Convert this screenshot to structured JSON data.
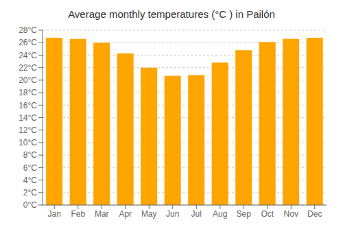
{
  "chart_data": {
    "type": "bar",
    "title": "Average monthly temperatures (°C ) in Pailón",
    "categories": [
      "Jan",
      "Feb",
      "Mar",
      "Apr",
      "May",
      "Jun",
      "Jul",
      "Aug",
      "Sep",
      "Oct",
      "Nov",
      "Dec"
    ],
    "values": [
      26.8,
      26.6,
      26.0,
      24.3,
      22.0,
      20.7,
      20.8,
      22.8,
      24.8,
      26.1,
      26.6,
      26.8
    ],
    "color": "#FFA500",
    "ylim": [
      0,
      28
    ],
    "yticks": [
      {
        "value": 0,
        "label": "0°C"
      },
      {
        "value": 2,
        "label": "2°C"
      },
      {
        "value": 4,
        "label": "4°C"
      },
      {
        "value": 6,
        "label": "6°C"
      },
      {
        "value": 8,
        "label": "8°C"
      },
      {
        "value": 10,
        "label": "10°C"
      },
      {
        "value": 12,
        "label": "12°C"
      },
      {
        "value": 14,
        "label": "14°C"
      },
      {
        "value": 16,
        "label": "16°C"
      },
      {
        "value": 18,
        "label": "18°C"
      },
      {
        "value": 20,
        "label": "20°C"
      },
      {
        "value": 22,
        "label": "22°C"
      },
      {
        "value": 24,
        "label": "24°C"
      },
      {
        "value": 26,
        "label": "26°C"
      },
      {
        "value": 28,
        "label": "28°C"
      }
    ],
    "grid": true
  }
}
